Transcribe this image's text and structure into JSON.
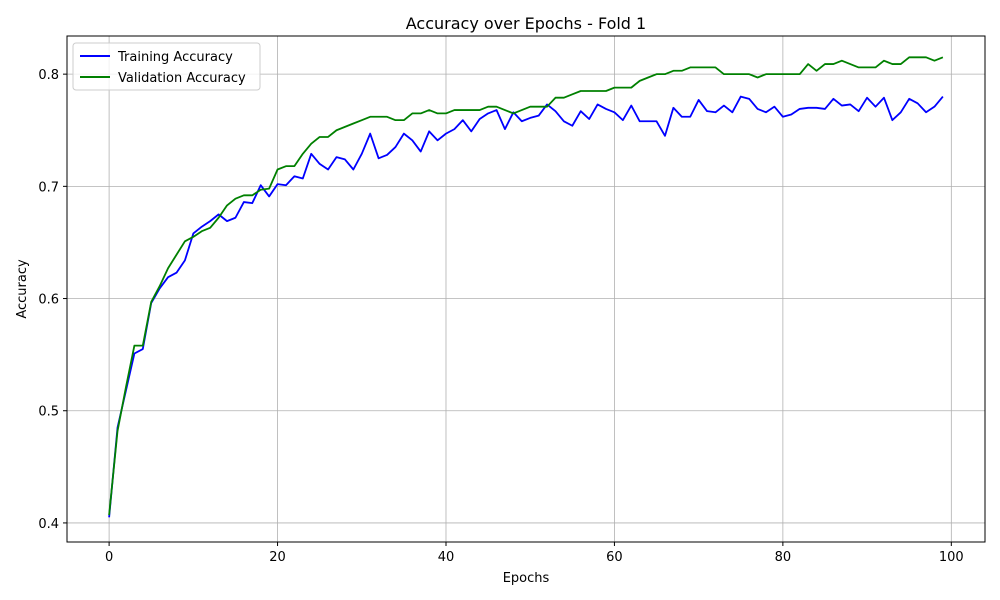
{
  "chart_data": {
    "type": "line",
    "title": "Accuracy over Epochs - Fold 1",
    "xlabel": "Epochs",
    "ylabel": "Accuracy",
    "xlim": [
      -5,
      104
    ],
    "ylim": [
      0.383,
      0.834
    ],
    "xticks": [
      0,
      20,
      40,
      60,
      80,
      100
    ],
    "xtick_labels": [
      "0",
      "20",
      "40",
      "60",
      "80",
      "100"
    ],
    "yticks": [
      0.4,
      0.5,
      0.6,
      0.7,
      0.8
    ],
    "ytick_labels": [
      "0.4",
      "0.5",
      "0.6",
      "0.7",
      "0.8"
    ],
    "grid": true,
    "legend_position": "top-left",
    "series": [
      {
        "name": "Training Accuracy",
        "color": "#0000ff",
        "values": [
          0.405,
          0.485,
          0.518,
          0.551,
          0.555,
          0.596,
          0.609,
          0.619,
          0.623,
          0.634,
          0.658,
          0.664,
          0.669,
          0.675,
          0.669,
          0.672,
          0.686,
          0.685,
          0.701,
          0.691,
          0.702,
          0.701,
          0.709,
          0.707,
          0.729,
          0.72,
          0.715,
          0.726,
          0.724,
          0.715,
          0.729,
          0.747,
          0.725,
          0.728,
          0.735,
          0.747,
          0.741,
          0.731,
          0.749,
          0.741,
          0.747,
          0.751,
          0.759,
          0.749,
          0.76,
          0.765,
          0.768,
          0.751,
          0.766,
          0.758,
          0.761,
          0.763,
          0.773,
          0.767,
          0.758,
          0.754,
          0.767,
          0.76,
          0.773,
          0.769,
          0.766,
          0.759,
          0.772,
          0.758,
          0.758,
          0.758,
          0.745,
          0.77,
          0.762,
          0.762,
          0.777,
          0.767,
          0.766,
          0.772,
          0.766,
          0.78,
          0.778,
          0.769,
          0.766,
          0.771,
          0.762,
          0.764,
          0.769,
          0.77,
          0.77,
          0.769,
          0.778,
          0.772,
          0.773,
          0.767,
          0.779,
          0.771,
          0.779,
          0.759,
          0.766,
          0.778,
          0.774,
          0.766,
          0.771,
          0.78
        ]
      },
      {
        "name": "Validation Accuracy",
        "color": "#008000",
        "values": [
          0.407,
          0.482,
          0.521,
          0.558,
          0.558,
          0.597,
          0.611,
          0.627,
          0.639,
          0.651,
          0.655,
          0.66,
          0.663,
          0.672,
          0.683,
          0.689,
          0.692,
          0.692,
          0.697,
          0.698,
          0.715,
          0.718,
          0.718,
          0.729,
          0.738,
          0.744,
          0.744,
          0.75,
          0.753,
          0.756,
          0.759,
          0.762,
          0.762,
          0.762,
          0.759,
          0.759,
          0.765,
          0.765,
          0.768,
          0.765,
          0.765,
          0.768,
          0.768,
          0.768,
          0.768,
          0.771,
          0.771,
          0.768,
          0.765,
          0.768,
          0.771,
          0.771,
          0.771,
          0.779,
          0.779,
          0.782,
          0.785,
          0.785,
          0.785,
          0.785,
          0.788,
          0.788,
          0.788,
          0.794,
          0.797,
          0.8,
          0.8,
          0.803,
          0.803,
          0.806,
          0.806,
          0.806,
          0.806,
          0.8,
          0.8,
          0.8,
          0.8,
          0.797,
          0.8,
          0.8,
          0.8,
          0.8,
          0.8,
          0.809,
          0.803,
          0.809,
          0.809,
          0.812,
          0.809,
          0.806,
          0.806,
          0.806,
          0.812,
          0.809,
          0.809,
          0.815,
          0.815,
          0.815,
          0.812,
          0.815
        ]
      }
    ]
  }
}
